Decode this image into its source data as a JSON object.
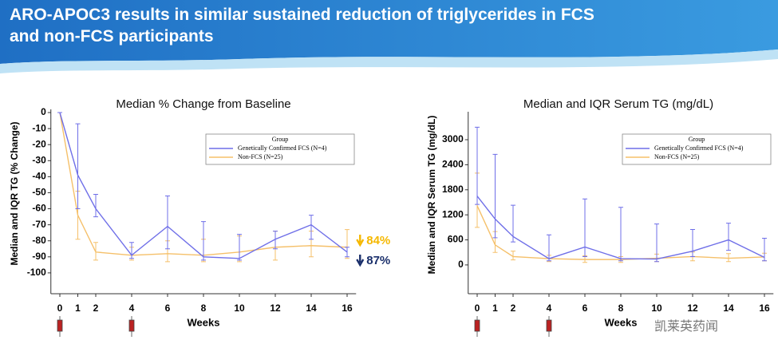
{
  "header": {
    "title": "ARO-APOC3 results in similar sustained reduction of triglycerides in FCS and non-FCS participants"
  },
  "watermark": "凯莱英药闻",
  "chart_data": [
    {
      "type": "line",
      "title": "Median % Change from Baseline",
      "xlabel": "Weeks",
      "ylabel": "Median and IQR  TG (% Change)",
      "x": [
        0,
        1,
        2,
        4,
        6,
        8,
        10,
        12,
        14,
        16
      ],
      "xticks": [
        0,
        1,
        2,
        4,
        6,
        8,
        10,
        12,
        14,
        16
      ],
      "xlim": [
        -0.5,
        16.5
      ],
      "ylim": [
        -113,
        2
      ],
      "yticks": [
        0,
        -10,
        -20,
        -30,
        -40,
        -50,
        -60,
        -70,
        -80,
        -90,
        -100
      ],
      "legend": {
        "title": "Group",
        "position": "upper right"
      },
      "series": [
        {
          "name": "Genetically Confirmed FCS (N=4)",
          "color": "#6f6fe8",
          "values": [
            0,
            -39,
            -60,
            -89,
            -71,
            -90,
            -91,
            -79,
            -70,
            -87
          ],
          "lower": [
            0,
            -60,
            -65,
            -91,
            -85,
            -92,
            -92,
            -85,
            -79,
            -90
          ],
          "upper": [
            0,
            -7,
            -51,
            -81,
            -52,
            -68,
            -76,
            -74,
            -64,
            -84
          ]
        },
        {
          "name": "Non-FCS (N=25)",
          "color": "#f5c06a",
          "values": [
            0,
            -64,
            -87,
            -89,
            -88,
            -89,
            -87,
            -84,
            -83,
            -84
          ],
          "lower": [
            0,
            -79,
            -92,
            -92,
            -93,
            -93,
            -93,
            -92,
            -90,
            -91
          ],
          "upper": [
            0,
            -49,
            -81,
            -84,
            -80,
            -79,
            -77,
            -74,
            -74,
            -73
          ]
        }
      ],
      "annotations": [
        {
          "text": "84%",
          "color": "#f5b800"
        },
        {
          "text": "87%",
          "color": "#1a2f6b"
        }
      ]
    },
    {
      "type": "line",
      "title": "Median and IQR Serum TG (mg/dL)",
      "xlabel": "Weeks",
      "ylabel": "Median and IQR Serum TG (mg/dL)",
      "x": [
        0,
        1,
        2,
        4,
        6,
        8,
        10,
        12,
        14,
        16
      ],
      "xticks": [
        0,
        1,
        2,
        4,
        6,
        8,
        10,
        12,
        14,
        16
      ],
      "xlim": [
        -0.5,
        16.5
      ],
      "ylim": [
        -690,
        3670
      ],
      "yticks": [
        0,
        600,
        1200,
        1800,
        2400,
        3000
      ],
      "legend": {
        "title": "Group",
        "position": "upper right"
      },
      "series": [
        {
          "name": "Genetically Confirmed FCS (N=4)",
          "color": "#6f6fe8",
          "values": [
            1650,
            1100,
            680,
            150,
            430,
            150,
            140,
            330,
            600,
            180
          ],
          "lower": [
            1450,
            650,
            550,
            100,
            200,
            100,
            80,
            200,
            350,
            100
          ],
          "upper": [
            3300,
            2650,
            1430,
            720,
            1580,
            1380,
            980,
            850,
            1000,
            640
          ]
        },
        {
          "name": "Non-FCS (N=25)",
          "color": "#f5c06a",
          "values": [
            1420,
            480,
            200,
            150,
            130,
            130,
            160,
            200,
            160,
            190
          ],
          "lower": [
            900,
            300,
            120,
            80,
            60,
            60,
            80,
            100,
            80,
            100
          ],
          "upper": [
            2200,
            800,
            330,
            230,
            220,
            200,
            260,
            310,
            270,
            280
          ]
        }
      ]
    }
  ]
}
